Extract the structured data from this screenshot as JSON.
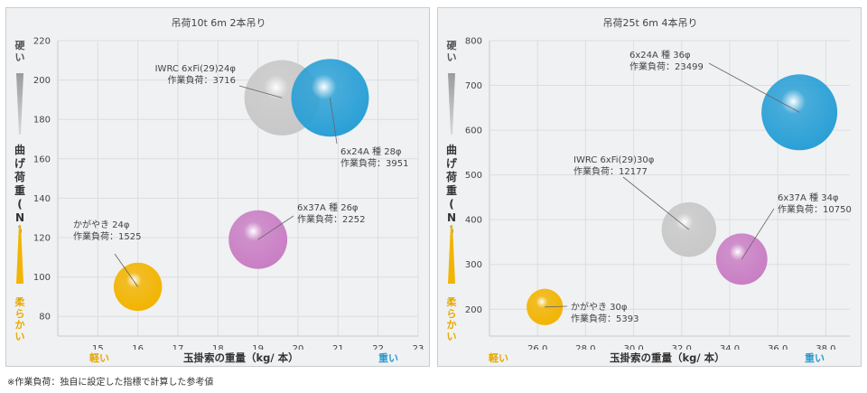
{
  "chart_data": [
    {
      "type": "scatter",
      "title": "吊荷10t  6m  2本吊り",
      "xlabel": "玉掛索の重量（kg/ 本）",
      "ylabel": "曲げ荷重（N）",
      "ylabel_top": "硬い",
      "ylabel_bottom": "柔らかい",
      "xlabel_left": "軽い",
      "xlabel_right": "重い",
      "xlim": [
        14,
        23
      ],
      "ylim": [
        70,
        220
      ],
      "x_ticks": [
        "15",
        "16",
        "17",
        "18",
        "19",
        "20",
        "21",
        "22",
        "23"
      ],
      "y_ticks": [
        "80",
        "100",
        "120",
        "140",
        "160",
        "180",
        "200",
        "220"
      ],
      "grid": true,
      "points": [
        {
          "name": "かがやき 24φ",
          "load_label": "作業負荷：1525",
          "x": 16.0,
          "y": 95,
          "work_load": 1525,
          "color": "#f2b400"
        },
        {
          "name": "6x37A 種 26φ",
          "load_label": "作業負荷：2252",
          "x": 19.0,
          "y": 119,
          "work_load": 2252,
          "color": "#c97ec4"
        },
        {
          "name": "IWRC 6xFi(29)24φ",
          "load_label": "作業負荷：3716",
          "x": 19.6,
          "y": 191,
          "work_load": 3716,
          "color": "#c8c8c8"
        },
        {
          "name": "6x24A 種 28φ",
          "load_label": "作業負荷：3951",
          "x": 20.8,
          "y": 191,
          "work_load": 3951,
          "color": "#2aa0d6"
        }
      ]
    },
    {
      "type": "scatter",
      "title": "吊荷25t  6m  4本吊り",
      "xlabel": "玉掛索の重量（kg/ 本）",
      "ylabel": "曲げ荷重（N）",
      "ylabel_top": "硬い",
      "ylabel_bottom": "柔らかい",
      "xlabel_left": "軽い",
      "xlabel_right": "重い",
      "xlim": [
        24,
        39
      ],
      "ylim": [
        140,
        800
      ],
      "x_ticks": [
        "26.0",
        "28.0",
        "30.0",
        "32.0",
        "34.0",
        "36.0",
        "38.0"
      ],
      "y_ticks": [
        "200",
        "300",
        "400",
        "500",
        "600",
        "700",
        "800"
      ],
      "grid": true,
      "points": [
        {
          "name": "かがやき 30φ",
          "load_label": "作業負荷：5393",
          "x": 26.3,
          "y": 205,
          "work_load": 5393,
          "color": "#f2b400"
        },
        {
          "name": "IWRC 6xFi(29)30φ",
          "load_label": "作業負荷：12177",
          "x": 32.3,
          "y": 378,
          "work_load": 12177,
          "color": "#c8c8c8"
        },
        {
          "name": "6x37A 種 34φ",
          "load_label": "作業負荷：10750",
          "x": 34.5,
          "y": 312,
          "work_load": 10750,
          "color": "#c97ec4"
        },
        {
          "name": "6x24A 種 36φ",
          "load_label": "作業負荷：23499",
          "x": 36.9,
          "y": 640,
          "work_load": 23499,
          "color": "#2aa0d6"
        }
      ]
    }
  ],
  "footnote": "※作業負荷：独自に設定した指標で計算した参考値"
}
